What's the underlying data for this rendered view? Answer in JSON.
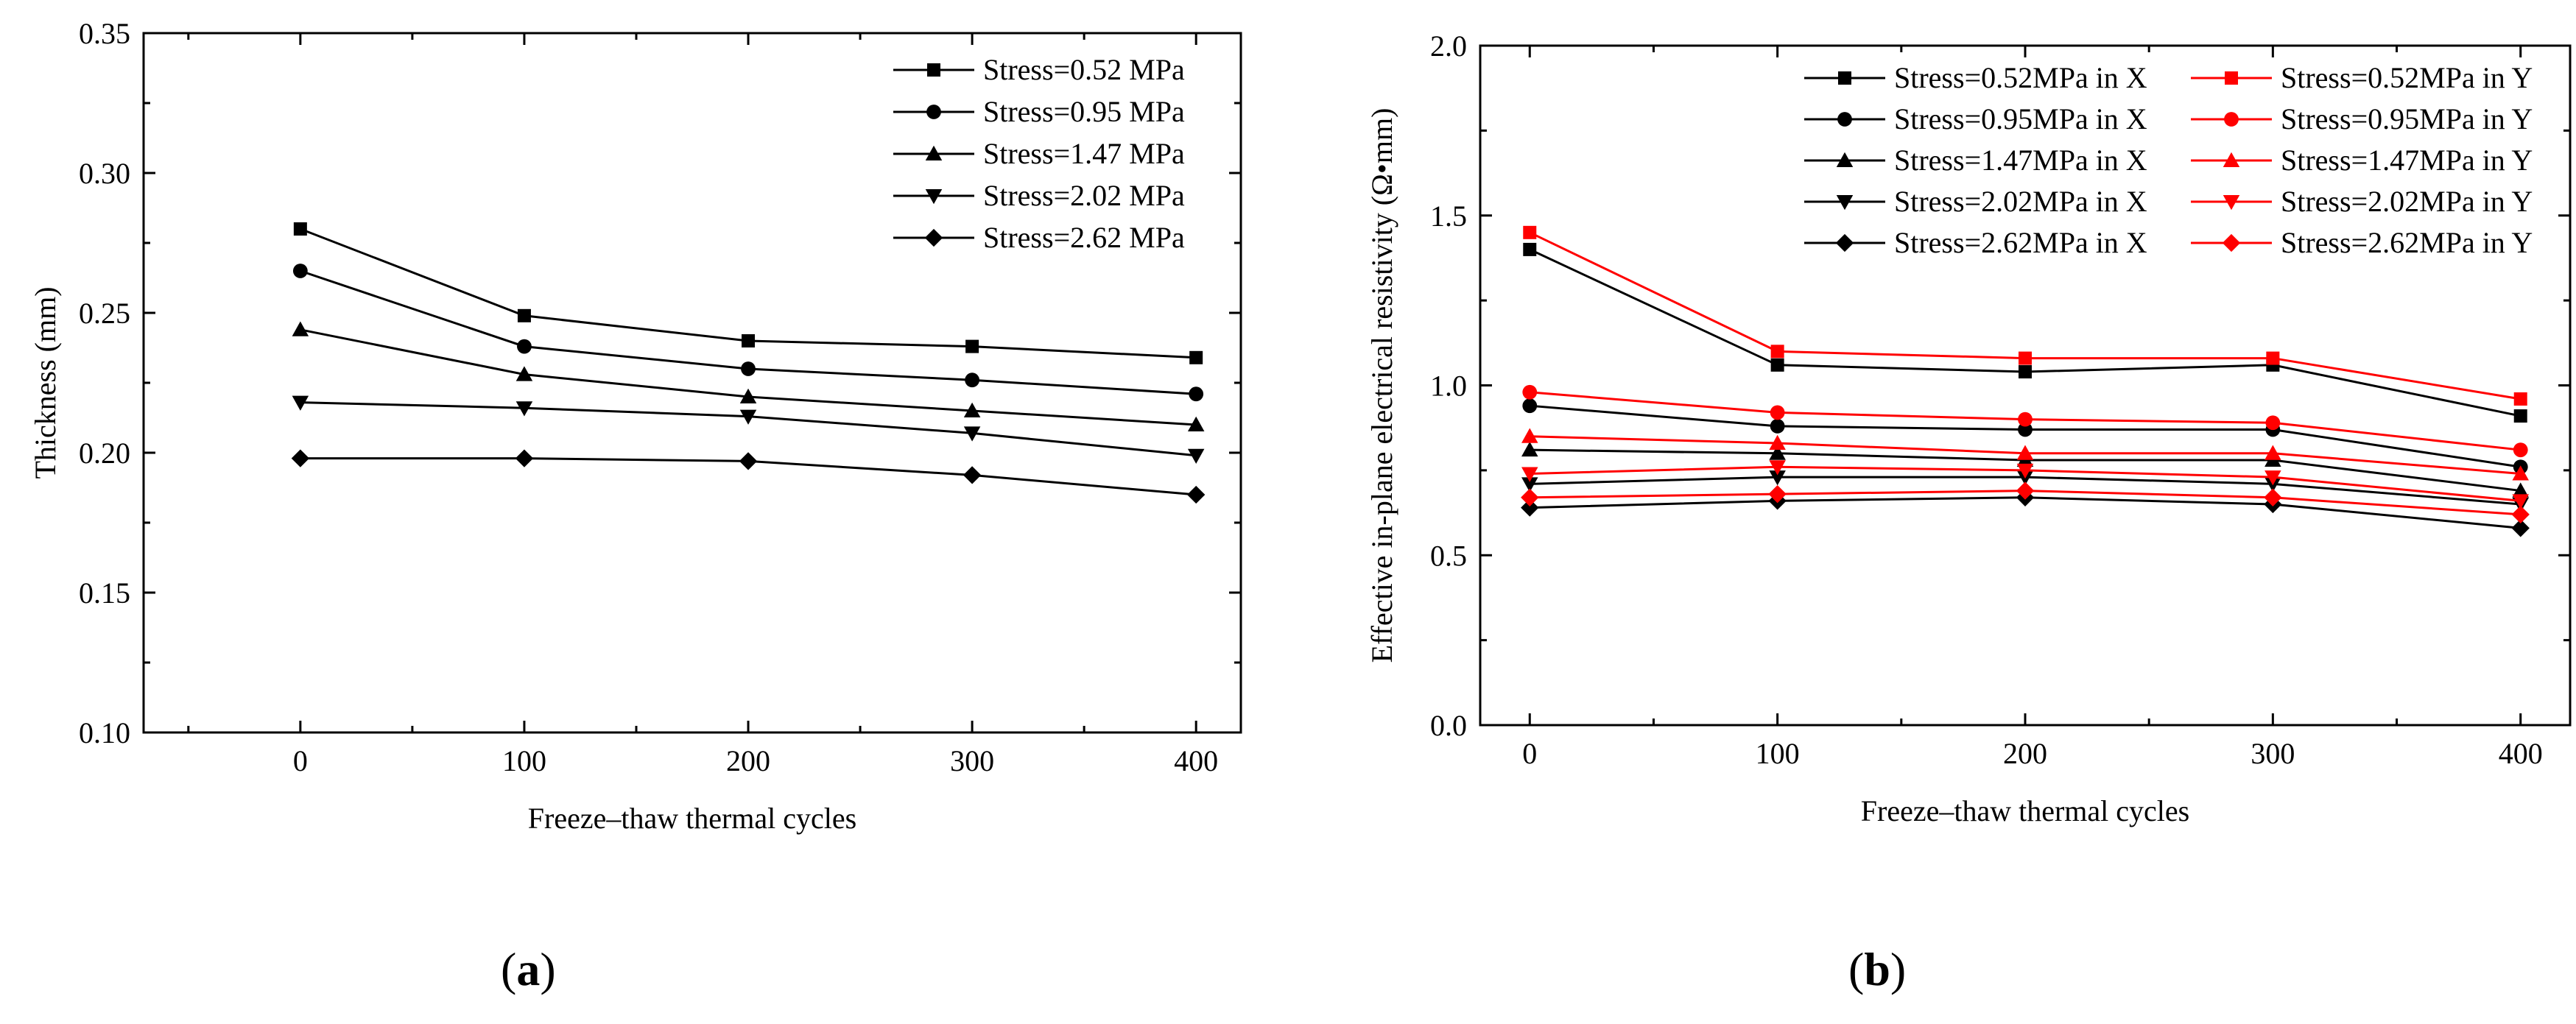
{
  "chart_data": [
    {
      "type": "line",
      "title": "",
      "xlabel": "Freeze–thaw thermal cycles",
      "ylabel": "Thickness (mm)",
      "x": [
        0,
        100,
        200,
        300,
        400
      ],
      "xlim": [
        -70,
        420
      ],
      "ylim": [
        0.1,
        0.35
      ],
      "xticks": [
        0,
        100,
        200,
        300,
        400
      ],
      "yticks": [
        0.1,
        0.15,
        0.2,
        0.25,
        0.3,
        0.35
      ],
      "ytick_labels": [
        "0.10",
        "0.15",
        "0.20",
        "0.25",
        "0.30",
        "0.35"
      ],
      "legend_position": "top-right",
      "series": [
        {
          "name": "Stress=0.52 MPa",
          "marker": "square",
          "color": "#000000",
          "values": [
            0.28,
            0.249,
            0.24,
            0.238,
            0.234
          ]
        },
        {
          "name": "Stress=0.95 MPa",
          "marker": "circle",
          "color": "#000000",
          "values": [
            0.265,
            0.238,
            0.23,
            0.226,
            0.221
          ]
        },
        {
          "name": "Stress=1.47 MPa",
          "marker": "triangle-up",
          "color": "#000000",
          "values": [
            0.244,
            0.228,
            0.22,
            0.215,
            0.21
          ]
        },
        {
          "name": "Stress=2.02 MPa",
          "marker": "triangle-down",
          "color": "#000000",
          "values": [
            0.218,
            0.216,
            0.213,
            0.207,
            0.199
          ]
        },
        {
          "name": "Stress=2.62 MPa",
          "marker": "diamond",
          "color": "#000000",
          "values": [
            0.198,
            0.198,
            0.197,
            0.192,
            0.185
          ]
        }
      ],
      "panel_label": "a"
    },
    {
      "type": "line",
      "title": "",
      "xlabel": "Freeze–thaw thermal cycles",
      "ylabel": "Effective in-plane electrical resistivity (Ω•mm)",
      "x": [
        0,
        100,
        200,
        300,
        400
      ],
      "xlim": [
        -20,
        420
      ],
      "ylim": [
        0.0,
        2.0
      ],
      "xticks": [
        0,
        100,
        200,
        300,
        400
      ],
      "yticks": [
        0.0,
        0.5,
        1.0,
        1.5,
        2.0
      ],
      "ytick_labels": [
        "0.0",
        "0.5",
        "1.0",
        "1.5",
        "2.0"
      ],
      "legend_position": "top-right",
      "series": [
        {
          "name": "Stress=0.52MPa in X",
          "marker": "square",
          "color": "#000000",
          "values": [
            1.4,
            1.06,
            1.04,
            1.06,
            0.91
          ]
        },
        {
          "name": "Stress=0.95MPa in X",
          "marker": "circle",
          "color": "#000000",
          "values": [
            0.94,
            0.88,
            0.87,
            0.87,
            0.76
          ]
        },
        {
          "name": "Stress=1.47MPa in X",
          "marker": "triangle-up",
          "color": "#000000",
          "values": [
            0.81,
            0.8,
            0.78,
            0.78,
            0.69
          ]
        },
        {
          "name": "Stress=2.02MPa in X",
          "marker": "triangle-down",
          "color": "#000000",
          "values": [
            0.71,
            0.73,
            0.73,
            0.71,
            0.65
          ]
        },
        {
          "name": "Stress=2.62MPa in X",
          "marker": "diamond",
          "color": "#000000",
          "values": [
            0.64,
            0.66,
            0.67,
            0.65,
            0.58
          ]
        },
        {
          "name": "Stress=0.52MPa in Y",
          "marker": "square",
          "color": "#ff0000",
          "values": [
            1.45,
            1.1,
            1.08,
            1.08,
            0.96
          ]
        },
        {
          "name": "Stress=0.95MPa in Y",
          "marker": "circle",
          "color": "#ff0000",
          "values": [
            0.98,
            0.92,
            0.9,
            0.89,
            0.81
          ]
        },
        {
          "name": "Stress=1.47MPa in Y",
          "marker": "triangle-up",
          "color": "#ff0000",
          "values": [
            0.85,
            0.83,
            0.8,
            0.8,
            0.74
          ]
        },
        {
          "name": "Stress=2.02MPa in Y",
          "marker": "triangle-down",
          "color": "#ff0000",
          "values": [
            0.74,
            0.76,
            0.75,
            0.73,
            0.66
          ]
        },
        {
          "name": "Stress=2.62MPa in Y",
          "marker": "diamond",
          "color": "#ff0000",
          "values": [
            0.67,
            0.68,
            0.69,
            0.67,
            0.62
          ]
        }
      ],
      "panel_label": "b"
    }
  ]
}
